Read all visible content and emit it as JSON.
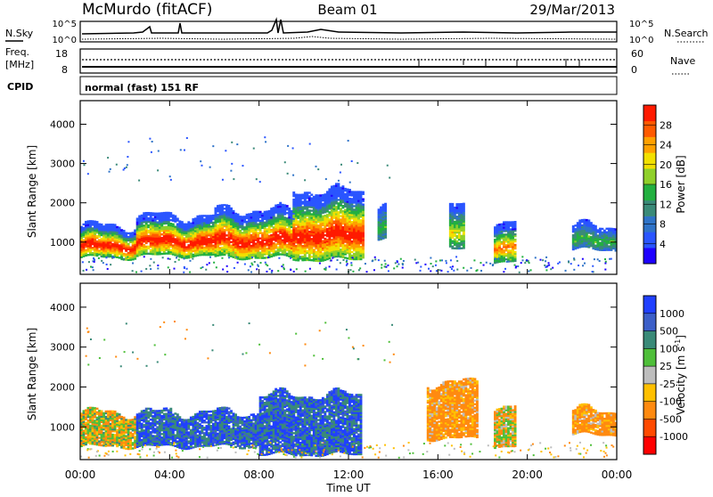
{
  "header": {
    "station": "McMurdo (fitACF)",
    "beam": "Beam 01",
    "date": "29/Mar/2013"
  },
  "noise_panel": {
    "left_label": "N.Sky",
    "right_label": "N.Search",
    "tick_top": "10^5",
    "tick_bottom": "10^0"
  },
  "freq_panel": {
    "left_label_1": "Freq.",
    "left_label_2": "[MHz]",
    "left_tick_top": "18",
    "left_tick_bottom": "8",
    "right_label": "Nave",
    "right_tick_top": "60",
    "right_tick_bottom": "0"
  },
  "cpid": {
    "label": "CPID",
    "value": "normal (fast) 151 RF"
  },
  "axes": {
    "ylabel": "Slant Range [km]",
    "xlabel": "Time UT",
    "yticks": [
      "1000",
      "2000",
      "3000",
      "4000"
    ],
    "xticks": [
      "00:00",
      "04:00",
      "08:00",
      "12:00",
      "16:00",
      "20:00",
      "00:00"
    ]
  },
  "chart_data": [
    {
      "type": "heatmap",
      "title": "",
      "xlabel": "",
      "ylabel": "Slant Range [km]",
      "x_range_hours": [
        0,
        24
      ],
      "ylim": [
        180,
        4600
      ],
      "colorbar": {
        "label": "Power [dB]",
        "ticks": [
          "4",
          "8",
          "12",
          "16",
          "20",
          "24",
          "28"
        ],
        "colors": [
          "#1e00ff",
          "#2a55ff",
          "#2f73c8",
          "#3a8a78",
          "#22b040",
          "#8fd02a",
          "#f2e000",
          "#ffa000",
          "#ff5a00",
          "#ff1a00"
        ]
      },
      "features": [
        {
          "time_start": 0.0,
          "time_end": 2.5,
          "range_low": 600,
          "range_high": 1400,
          "level": "16-28 dB"
        },
        {
          "time_start": 2.5,
          "time_end": 6.0,
          "range_low": 650,
          "range_high": 1650,
          "level": "12-28 dB"
        },
        {
          "time_start": 6.0,
          "time_end": 9.5,
          "range_low": 600,
          "range_high": 1800,
          "level": "16-28 dB"
        },
        {
          "time_start": 9.5,
          "time_end": 12.6,
          "range_low": 550,
          "range_high": 2300,
          "level": "16-30 dB"
        },
        {
          "time_start": 13.3,
          "time_end": 13.7,
          "range_low": 1100,
          "range_high": 2000,
          "level": "4-12 dB"
        },
        {
          "time_start": 16.5,
          "time_end": 17.2,
          "range_low": 800,
          "range_high": 1900,
          "level": "8-20 dB"
        },
        {
          "time_start": 18.5,
          "time_end": 19.5,
          "range_low": 500,
          "range_high": 1500,
          "level": "8-24 dB"
        },
        {
          "time_start": 22.0,
          "time_end": 24.0,
          "range_low": 800,
          "range_high": 1400,
          "level": "8-16 dB"
        }
      ]
    },
    {
      "type": "heatmap",
      "title": "",
      "xlabel": "Time UT",
      "ylabel": "Slant Range [km]",
      "x_range_hours": [
        0,
        24
      ],
      "ylim": [
        180,
        4600
      ],
      "colorbar": {
        "label": "Velocity [m s-1]",
        "label_parts": {
          "main": "Velocity",
          "unit": "[m s",
          "exp": "-1",
          "close": "]"
        },
        "ticks": [
          "1000",
          "500",
          "100",
          "25",
          "-25",
          "-100",
          "-500",
          "-1000"
        ],
        "colors": [
          "#2040ff",
          "#3c5fc8",
          "#3a8a78",
          "#4fbf3a",
          "#bdbdbd",
          "#ffc000",
          "#ff8a10",
          "#ff4a00",
          "#ff0000"
        ]
      },
      "features": [
        {
          "time_start": 0.0,
          "time_end": 2.5,
          "range_low": 500,
          "range_high": 1350,
          "velocity": "-500 to 100"
        },
        {
          "time_start": 2.5,
          "time_end": 8.0,
          "range_low": 500,
          "range_high": 1350,
          "velocity": "100 to 1000"
        },
        {
          "time_start": 8.0,
          "time_end": 12.5,
          "range_low": 300,
          "range_high": 1800,
          "velocity": "100 to 1000"
        },
        {
          "time_start": 15.5,
          "time_end": 17.8,
          "range_low": 700,
          "range_high": 2100,
          "velocity": "-500 to -100"
        },
        {
          "time_start": 18.5,
          "time_end": 19.5,
          "range_low": 500,
          "range_high": 1500,
          "velocity": "-500 to 25"
        },
        {
          "time_start": 22.0,
          "time_end": 24.0,
          "range_low": 800,
          "range_high": 1400,
          "velocity": "-500 to -100"
        }
      ]
    }
  ]
}
